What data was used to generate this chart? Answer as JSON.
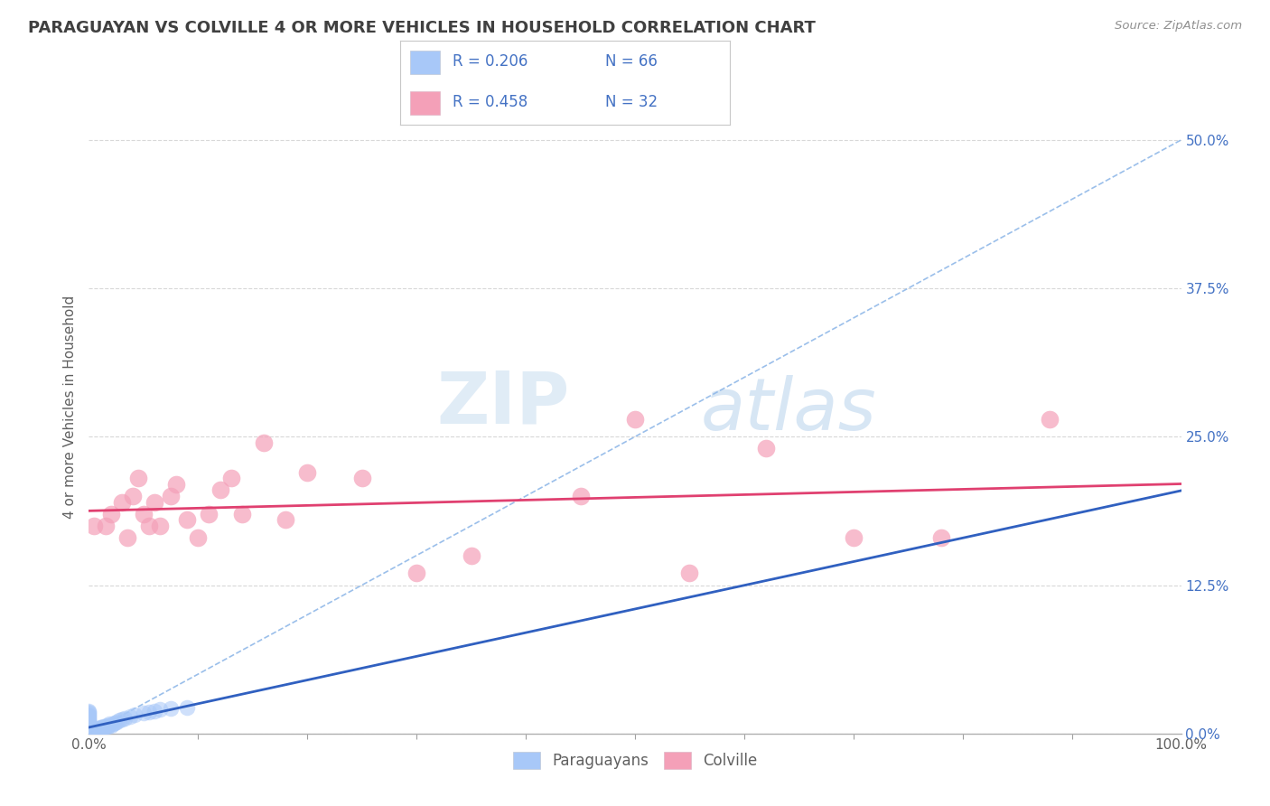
{
  "title": "PARAGUAYAN VS COLVILLE 4 OR MORE VEHICLES IN HOUSEHOLD CORRELATION CHART",
  "source": "Source: ZipAtlas.com",
  "ylabel": "4 or more Vehicles in Household",
  "xlim": [
    0.0,
    1.0
  ],
  "ylim": [
    0.0,
    0.55
  ],
  "ytick_values": [
    0.0,
    0.125,
    0.25,
    0.375,
    0.5
  ],
  "ytick_labels": [
    "0.0%",
    "12.5%",
    "25.0%",
    "37.5%",
    "50.0%"
  ],
  "xtick_values": [
    0.0,
    1.0
  ],
  "xtick_labels": [
    "0.0%",
    "100.0%"
  ],
  "paraguayan_color": "#a8c8f8",
  "colville_color": "#f4a0b8",
  "paraguayan_R": 0.206,
  "paraguayan_N": 66,
  "colville_R": 0.458,
  "colville_N": 32,
  "watermark_zip": "ZIP",
  "watermark_atlas": "atlas",
  "title_color": "#404040",
  "legend_text_color": "#4472c4",
  "background_color": "#ffffff",
  "grid_color": "#d8d8d8",
  "dashed_line_color": "#90b8e8",
  "trend_paraguayan_color": "#3060c0",
  "trend_colville_color": "#e04070",
  "paraguayan_scatter_x": [
    0.0,
    0.0,
    0.0,
    0.0,
    0.0,
    0.0,
    0.0,
    0.0,
    0.0,
    0.0,
    0.0,
    0.0,
    0.0,
    0.0,
    0.0,
    0.0,
    0.0,
    0.0,
    0.0,
    0.0,
    0.0,
    0.0,
    0.0,
    0.0,
    0.0,
    0.0,
    0.0,
    0.0,
    0.0,
    0.0,
    0.002,
    0.003,
    0.003,
    0.004,
    0.004,
    0.005,
    0.006,
    0.007,
    0.008,
    0.009,
    0.01,
    0.01,
    0.011,
    0.012,
    0.013,
    0.014,
    0.015,
    0.016,
    0.017,
    0.018,
    0.019,
    0.02,
    0.022,
    0.024,
    0.025,
    0.028,
    0.03,
    0.033,
    0.038,
    0.042,
    0.05,
    0.055,
    0.06,
    0.065,
    0.075,
    0.09
  ],
  "paraguayan_scatter_y": [
    0.0,
    0.0,
    0.0,
    0.0,
    0.0,
    0.0,
    0.001,
    0.001,
    0.002,
    0.002,
    0.003,
    0.003,
    0.004,
    0.005,
    0.005,
    0.006,
    0.007,
    0.008,
    0.009,
    0.01,
    0.01,
    0.011,
    0.012,
    0.013,
    0.014,
    0.015,
    0.016,
    0.017,
    0.018,
    0.019,
    0.0,
    0.001,
    0.002,
    0.001,
    0.002,
    0.003,
    0.002,
    0.003,
    0.004,
    0.003,
    0.004,
    0.005,
    0.004,
    0.005,
    0.006,
    0.005,
    0.006,
    0.007,
    0.006,
    0.007,
    0.008,
    0.007,
    0.008,
    0.009,
    0.01,
    0.011,
    0.012,
    0.013,
    0.014,
    0.016,
    0.017,
    0.018,
    0.019,
    0.02,
    0.021,
    0.022
  ],
  "colville_scatter_x": [
    0.005,
    0.015,
    0.02,
    0.03,
    0.035,
    0.04,
    0.045,
    0.05,
    0.055,
    0.06,
    0.065,
    0.075,
    0.08,
    0.09,
    0.1,
    0.11,
    0.12,
    0.13,
    0.14,
    0.16,
    0.18,
    0.2,
    0.25,
    0.3,
    0.35,
    0.45,
    0.5,
    0.55,
    0.62,
    0.7,
    0.78,
    0.88
  ],
  "colville_scatter_y": [
    0.175,
    0.175,
    0.185,
    0.195,
    0.165,
    0.2,
    0.215,
    0.185,
    0.175,
    0.195,
    0.175,
    0.2,
    0.21,
    0.18,
    0.165,
    0.185,
    0.205,
    0.215,
    0.185,
    0.245,
    0.18,
    0.22,
    0.215,
    0.135,
    0.15,
    0.2,
    0.265,
    0.135,
    0.24,
    0.165,
    0.165,
    0.265
  ]
}
